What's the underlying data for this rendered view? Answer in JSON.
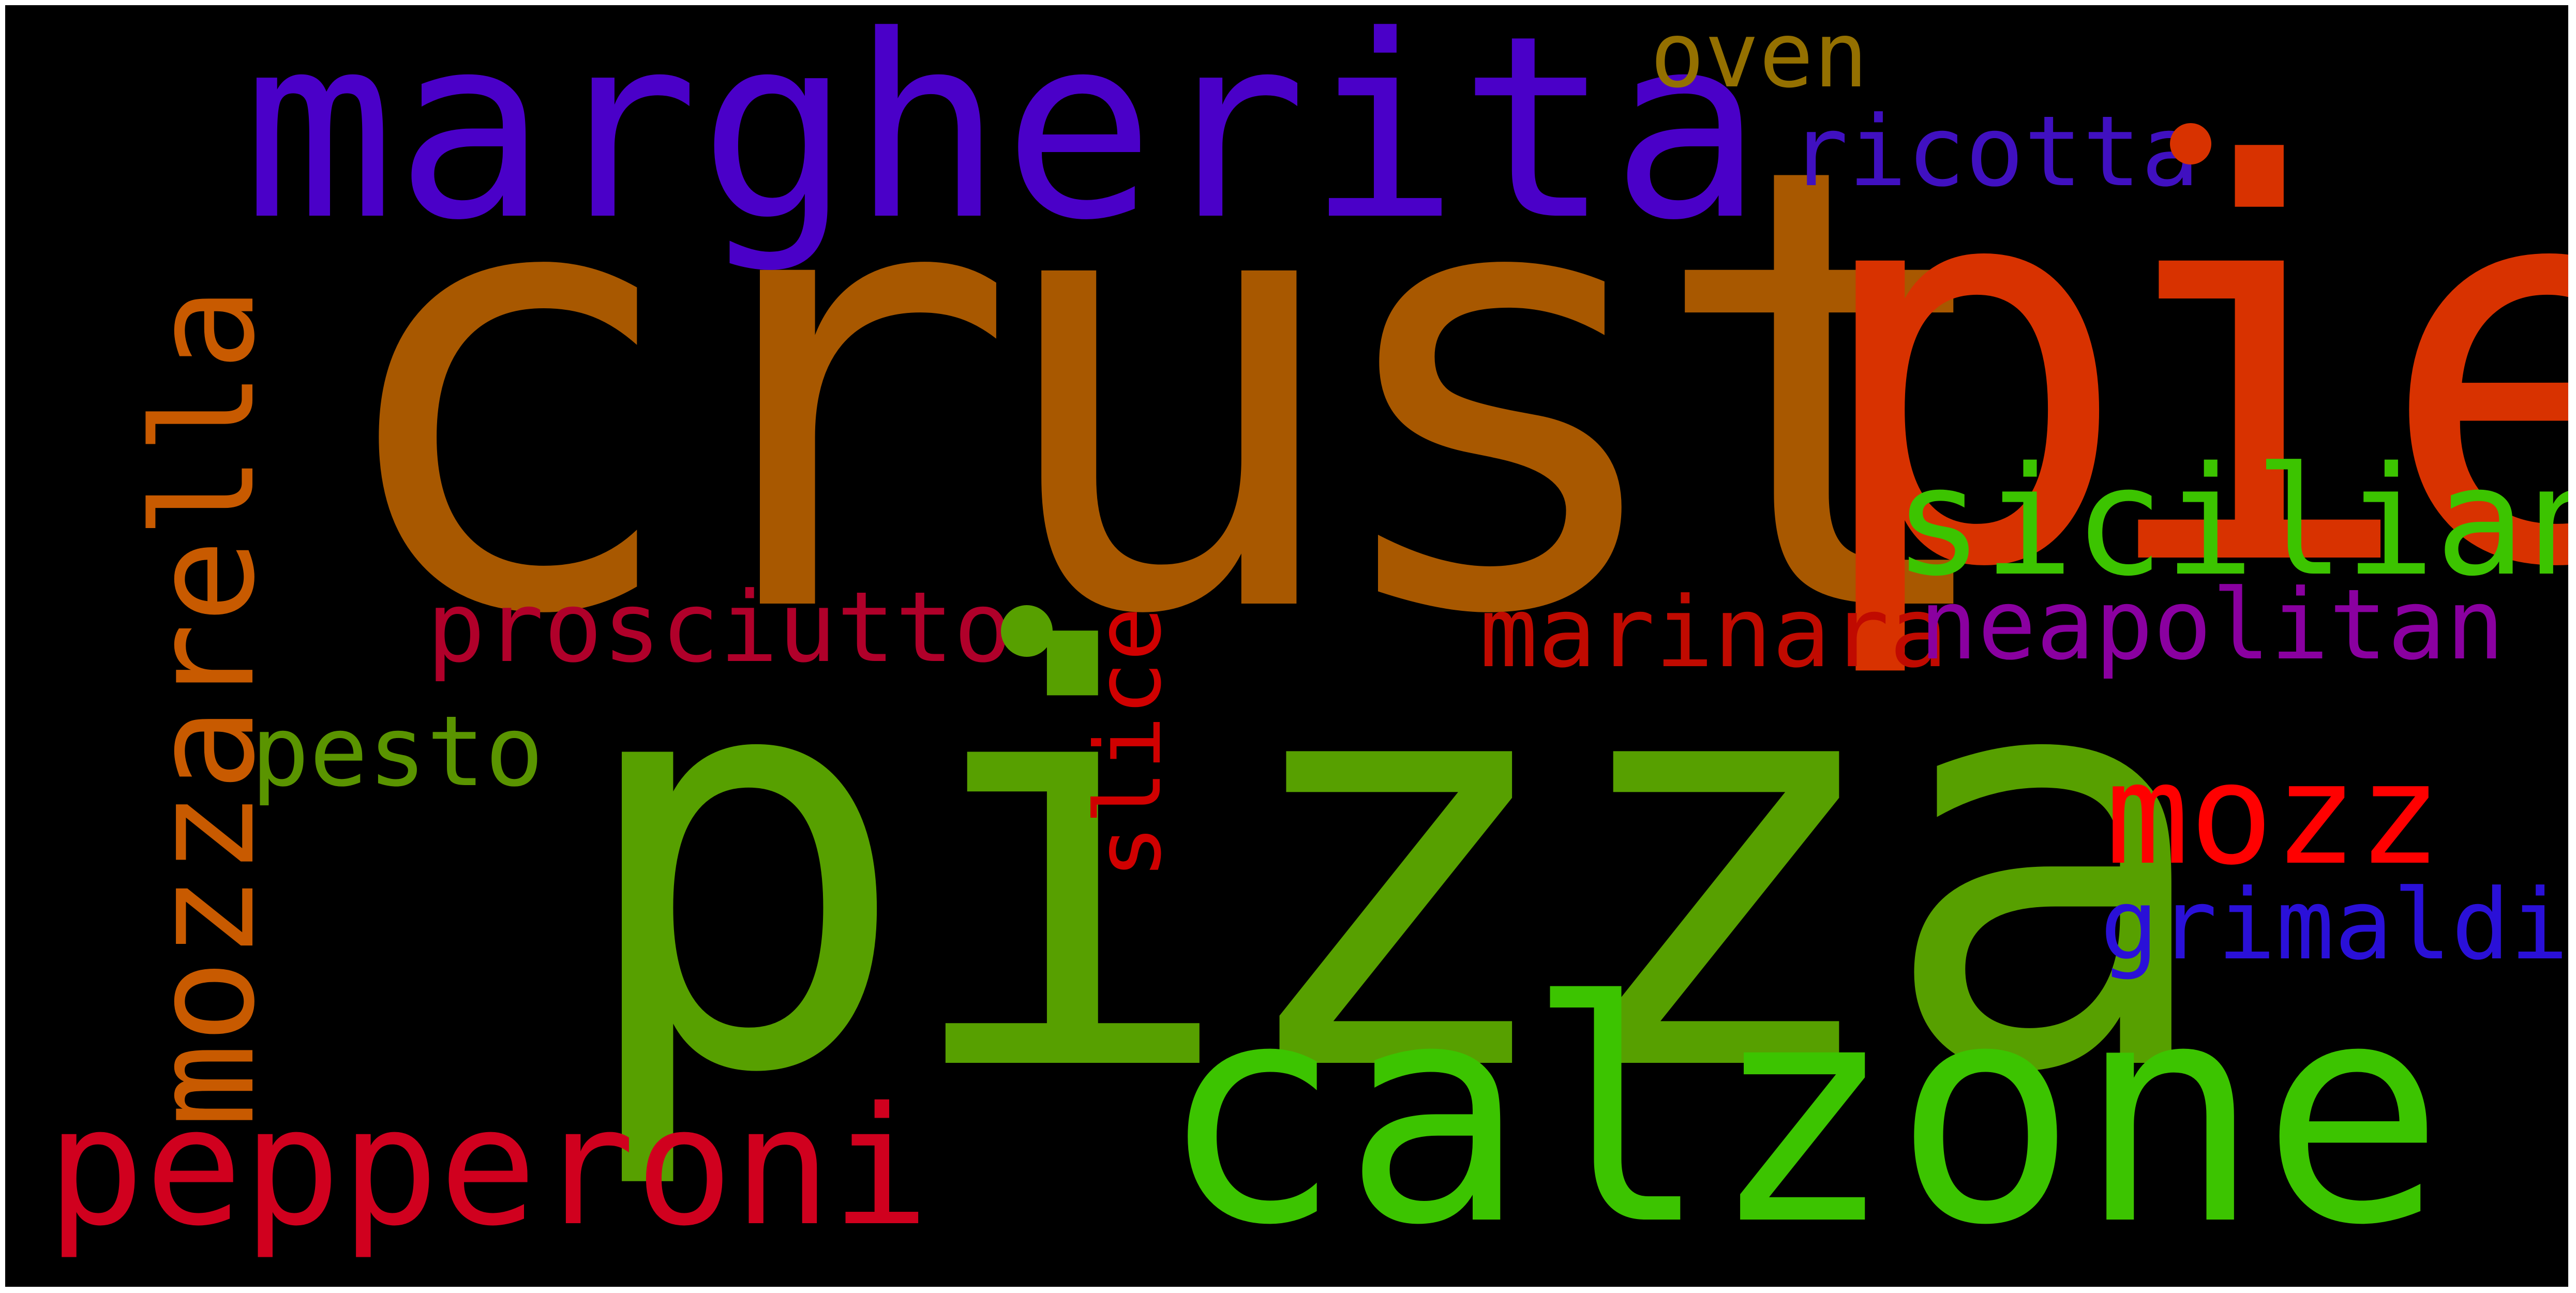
{
  "words": [
    {
      "text": "crust",
      "color": "#a85800"
    },
    {
      "text": "pizza",
      "color": "#57a000"
    },
    {
      "text": "pie",
      "color": "#d83200"
    },
    {
      "text": "margherita",
      "color": "#4a00c8"
    },
    {
      "text": "calzone",
      "color": "#3cc400"
    },
    {
      "text": "sicilian",
      "color": "#3cc400"
    },
    {
      "text": "mozzarella",
      "color": "#c85a00"
    },
    {
      "text": "pepperoni",
      "color": "#d0001e"
    },
    {
      "text": "mozz",
      "color": "#ff0000"
    },
    {
      "text": "prosciutto",
      "color": "#b0002a"
    },
    {
      "text": "marinara",
      "color": "#c00a00"
    },
    {
      "text": "neapolitan",
      "color": "#8a00a0"
    },
    {
      "text": "ricotta",
      "color": "#4010c0"
    },
    {
      "text": "grimaldi",
      "color": "#2a10d8"
    },
    {
      "text": "pesto",
      "color": "#5a9400"
    },
    {
      "text": "slice",
      "color": "#d00000"
    },
    {
      "text": "oven",
      "color": "#947000"
    }
  ],
  "dots": [
    {
      "name": "orange-dot",
      "color": "#d83200"
    },
    {
      "name": "green-dot",
      "color": "#57a000"
    }
  ]
}
